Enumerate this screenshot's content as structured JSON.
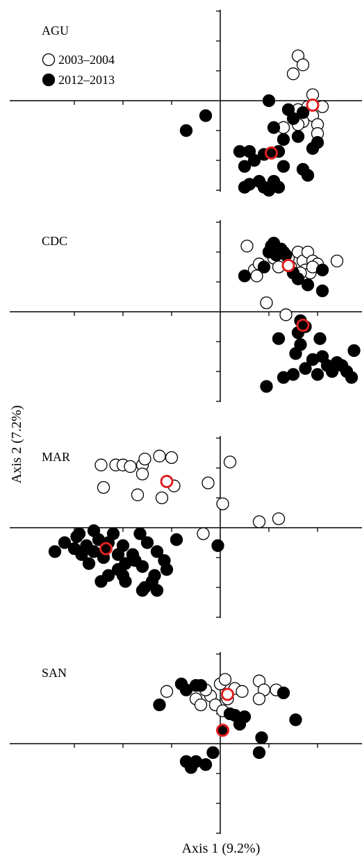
{
  "chart_data": {
    "type": "scatter",
    "x_axis_label": "Axis 1 (9.2%)",
    "y_axis_label": "Axis 2 (7.2%)",
    "xlim": [
      -3,
      2.1
    ],
    "x_ticks": [
      -3,
      -2,
      -1,
      1,
      2
    ],
    "legend": {
      "placement": "top-left of first panel",
      "entries": [
        {
          "label": "2003–2004",
          "marker": "open-circle"
        },
        {
          "label": "2012–2013",
          "marker": "filled-circle"
        }
      ]
    },
    "colors": {
      "open_fill": "#ffffff",
      "filled_fill": "#000000",
      "marker_stroke": "#000000",
      "centroid_stroke": "#e02020"
    },
    "panels": [
      {
        "name": "AGU",
        "ylim": [
          -3,
          3
        ],
        "y_ticks": [
          -3,
          -2,
          -1,
          1,
          2,
          3
        ],
        "series": [
          {
            "name": "2003–2004",
            "style": "open",
            "points": [
              [
                1.6,
                1.5
              ],
              [
                1.7,
                1.2
              ],
              [
                1.5,
                0.9
              ],
              [
                1.9,
                0.2
              ],
              [
                1.6,
                -0.3
              ],
              [
                1.8,
                -0.2
              ],
              [
                2.1,
                -0.2
              ],
              [
                1.9,
                -0.5
              ],
              [
                2.0,
                -0.8
              ],
              [
                1.7,
                -0.7
              ],
              [
                2.0,
                -1.1
              ],
              [
                1.3,
                -0.9
              ],
              [
                1.6,
                -0.8
              ]
            ],
            "centroid": [
              1.9,
              -0.15
            ]
          },
          {
            "name": "2012–2013",
            "style": "filled",
            "points": [
              [
                -0.3,
                -0.5
              ],
              [
                -0.7,
                -1.0
              ],
              [
                1.0,
                0.0
              ],
              [
                1.4,
                -0.3
              ],
              [
                1.5,
                -0.6
              ],
              [
                1.7,
                -0.4
              ],
              [
                1.1,
                -0.9
              ],
              [
                1.3,
                -1.3
              ],
              [
                1.6,
                -1.2
              ],
              [
                2.0,
                -1.4
              ],
              [
                1.9,
                -1.6
              ],
              [
                0.4,
                -1.7
              ],
              [
                0.6,
                -1.7
              ],
              [
                0.7,
                -2.0
              ],
              [
                0.9,
                -1.8
              ],
              [
                1.2,
                -1.7
              ],
              [
                0.5,
                -2.2
              ],
              [
                1.3,
                -2.2
              ],
              [
                1.7,
                -2.3
              ],
              [
                1.8,
                -2.5
              ],
              [
                0.6,
                -2.8
              ],
              [
                0.8,
                -2.7
              ],
              [
                0.9,
                -2.9
              ],
              [
                1.0,
                -3.0
              ],
              [
                1.1,
                -2.7
              ],
              [
                1.2,
                -2.9
              ],
              [
                0.5,
                -2.9
              ]
            ],
            "centroid": [
              1.05,
              -1.75
            ]
          }
        ]
      },
      {
        "name": "CDC",
        "ylim": [
          -3,
          3
        ],
        "y_ticks": [
          -3,
          -2,
          -1,
          1,
          2,
          3
        ],
        "series": [
          {
            "name": "2003–2004",
            "style": "open",
            "points": [
              [
                0.55,
                2.2
              ],
              [
                0.7,
                1.4
              ],
              [
                0.75,
                1.2
              ],
              [
                0.8,
                1.6
              ],
              [
                1.0,
                2.0
              ],
              [
                1.1,
                1.8
              ],
              [
                1.2,
                1.5
              ],
              [
                1.3,
                2.0
              ],
              [
                1.4,
                1.8
              ],
              [
                1.6,
                2.0
              ],
              [
                1.7,
                1.7
              ],
              [
                1.8,
                2.0
              ],
              [
                1.9,
                1.7
              ],
              [
                2.0,
                1.6
              ],
              [
                2.4,
                1.7
              ],
              [
                1.75,
                1.4
              ],
              [
                1.85,
                1.3
              ],
              [
                1.9,
                1.5
              ],
              [
                1.45,
                1.5
              ],
              [
                1.65,
                1.3
              ],
              [
                0.95,
                0.3
              ],
              [
                1.35,
                -0.1
              ]
            ],
            "centroid": [
              1.4,
              1.55
            ]
          },
          {
            "name": "2012–2013",
            "style": "filled",
            "points": [
              [
                0.5,
                1.2
              ],
              [
                0.9,
                1.5
              ],
              [
                1.0,
                2.0
              ],
              [
                1.05,
                2.2
              ],
              [
                1.1,
                2.3
              ],
              [
                1.15,
                1.9
              ],
              [
                1.25,
                2.1
              ],
              [
                1.35,
                1.9
              ],
              [
                1.5,
                1.3
              ],
              [
                1.6,
                1.1
              ],
              [
                2.1,
                1.4
              ],
              [
                2.1,
                0.7
              ],
              [
                1.8,
                0.9
              ],
              [
                1.65,
                -0.3
              ],
              [
                1.75,
                -0.5
              ],
              [
                1.6,
                -0.7
              ],
              [
                1.2,
                -0.9
              ],
              [
                1.65,
                -1.1
              ],
              [
                2.05,
                -0.9
              ],
              [
                2.75,
                -1.3
              ],
              [
                1.55,
                -1.4
              ],
              [
                1.9,
                -1.6
              ],
              [
                2.1,
                -1.5
              ],
              [
                2.2,
                -1.8
              ],
              [
                2.4,
                -1.7
              ],
              [
                2.5,
                -1.8
              ],
              [
                2.3,
                -2.0
              ],
              [
                2.6,
                -2.0
              ],
              [
                2.7,
                -2.2
              ],
              [
                2.0,
                -2.1
              ],
              [
                1.5,
                -2.1
              ],
              [
                1.3,
                -2.2
              ],
              [
                1.75,
                -1.9
              ],
              [
                0.95,
                -2.5
              ]
            ],
            "centroid": [
              1.7,
              -0.45
            ]
          }
        ]
      },
      {
        "name": "MAR",
        "ylim": [
          -3,
          3
        ],
        "y_ticks": [
          -3,
          -2,
          -1,
          1,
          2,
          3
        ],
        "series": [
          {
            "name": "2003–2004",
            "style": "open",
            "points": [
              [
                -2.45,
                2.1
              ],
              [
                -2.15,
                2.1
              ],
              [
                -2.0,
                2.1
              ],
              [
                -1.85,
                2.05
              ],
              [
                -1.6,
                2.1
              ],
              [
                -1.55,
                2.3
              ],
              [
                -1.25,
                2.4
              ],
              [
                -1.0,
                2.35
              ],
              [
                -2.4,
                1.35
              ],
              [
                -1.6,
                1.8
              ],
              [
                -1.7,
                1.1
              ],
              [
                -1.2,
                1.0
              ],
              [
                -0.95,
                1.4
              ],
              [
                -0.25,
                1.5
              ],
              [
                0.2,
                2.2
              ],
              [
                0.05,
                0.8
              ],
              [
                0.8,
                0.2
              ],
              [
                1.2,
                0.3
              ],
              [
                -0.35,
                -0.2
              ]
            ],
            "centroid": [
              -1.1,
              1.55
            ]
          },
          {
            "name": "2012–2013",
            "style": "filled",
            "points": [
              [
                -3.4,
                -0.8
              ],
              [
                -3.2,
                -0.5
              ],
              [
                -2.95,
                -0.3
              ],
              [
                -2.75,
                -0.6
              ],
              [
                -2.6,
                -0.8
              ],
              [
                -2.5,
                -0.4
              ],
              [
                -2.4,
                -1.0
              ],
              [
                -2.2,
                -0.2
              ],
              [
                -2.0,
                -0.6
              ],
              [
                -1.8,
                -0.9
              ],
              [
                -1.65,
                -0.2
              ],
              [
                -1.5,
                -0.5
              ],
              [
                -1.3,
                -0.8
              ],
              [
                -1.15,
                -1.1
              ],
              [
                -0.9,
                -0.4
              ],
              [
                -2.85,
                -0.9
              ],
              [
                -2.9,
                -0.2
              ],
              [
                -2.3,
                -0.5
              ],
              [
                -2.1,
                -0.9
              ],
              [
                -1.95,
                -1.2
              ],
              [
                -1.75,
                -1.1
              ],
              [
                -2.1,
                -1.4
              ],
              [
                -2.0,
                -1.6
              ],
              [
                -1.6,
                -1.3
              ],
              [
                -1.1,
                -1.4
              ],
              [
                -1.35,
                -1.6
              ],
              [
                -1.4,
                -1.8
              ],
              [
                -1.55,
                -2.0
              ],
              [
                -2.45,
                -1.8
              ],
              [
                -2.7,
                -1.2
              ],
              [
                -3.0,
                -0.7
              ],
              [
                -2.6,
                -0.1
              ],
              [
                -1.6,
                -2.1
              ],
              [
                -1.3,
                -2.1
              ],
              [
                -1.95,
                -1.8
              ],
              [
                -0.05,
                -0.6
              ],
              [
                -2.3,
                -1.6
              ]
            ],
            "centroid": [
              -2.35,
              -0.7
            ]
          }
        ]
      },
      {
        "name": "SAN",
        "ylim": [
          -3,
          3
        ],
        "y_ticks": [
          -3,
          -2,
          -1,
          1,
          2,
          3
        ],
        "series": [
          {
            "name": "2003–2004",
            "style": "open",
            "points": [
              [
                -1.1,
                1.75
              ],
              [
                -0.5,
                1.5
              ],
              [
                -0.2,
                1.6
              ],
              [
                -0.1,
                1.3
              ],
              [
                0.0,
                2.0
              ],
              [
                0.1,
                2.15
              ],
              [
                0.3,
                1.85
              ],
              [
                0.05,
                1.1
              ],
              [
                0.8,
                2.1
              ],
              [
                0.9,
                1.8
              ],
              [
                1.15,
                1.8
              ],
              [
                0.8,
                1.5
              ],
              [
                -0.3,
                1.8
              ],
              [
                -0.4,
                1.3
              ],
              [
                0.15,
                1.5
              ],
              [
                0.45,
                1.75
              ]
            ],
            "centroid": [
              0.15,
              1.65
            ]
          },
          {
            "name": "2012–2013",
            "style": "filled",
            "points": [
              [
                -0.8,
                2.0
              ],
              [
                -0.7,
                1.8
              ],
              [
                -0.5,
                1.95
              ],
              [
                -0.4,
                1.95
              ],
              [
                -1.25,
                1.3
              ],
              [
                1.3,
                1.7
              ],
              [
                0.2,
                1.0
              ],
              [
                0.3,
                0.95
              ],
              [
                0.5,
                0.9
              ],
              [
                0.4,
                0.65
              ],
              [
                1.55,
                0.8
              ],
              [
                0.85,
                0.2
              ],
              [
                -0.7,
                -0.6
              ],
              [
                -0.6,
                -0.8
              ],
              [
                -0.5,
                -0.6
              ],
              [
                -0.3,
                -0.7
              ],
              [
                -0.15,
                -0.3
              ],
              [
                0.8,
                -0.3
              ]
            ],
            "centroid": [
              0.05,
              0.45
            ]
          }
        ]
      }
    ]
  }
}
